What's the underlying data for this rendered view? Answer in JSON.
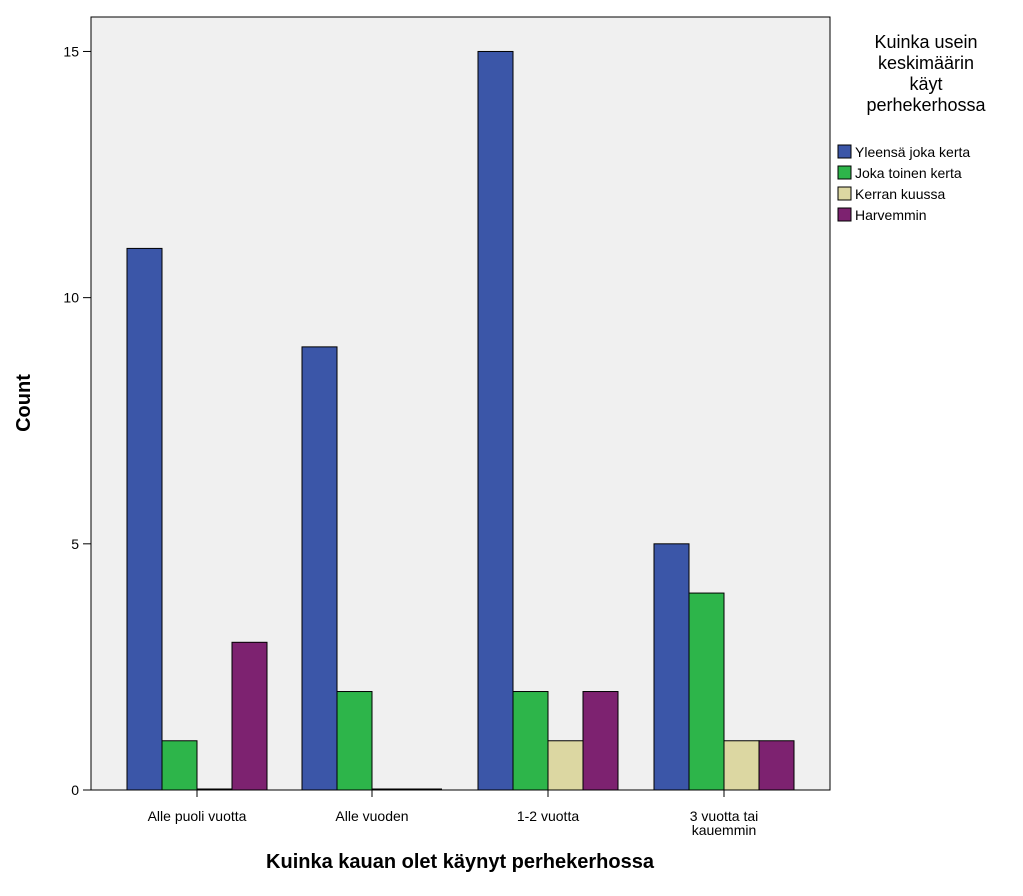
{
  "chart_data": {
    "type": "bar",
    "title": "",
    "xlabel": "Kuinka kauan olet käynyt perhekerhossa",
    "ylabel": "Count",
    "categories": [
      "Alle puoli vuotta",
      "Alle vuoden",
      "1-2 vuotta",
      "3 vuotta tai kauemmin"
    ],
    "category_lines": [
      [
        "Alle puoli vuotta"
      ],
      [
        "Alle vuoden"
      ],
      [
        "1-2 vuotta"
      ],
      [
        "3 vuotta tai",
        "kauemmin"
      ]
    ],
    "yticks": [
      0,
      5,
      10,
      15
    ],
    "ylim": [
      0,
      15.7
    ],
    "grid": false,
    "legend": {
      "title": "Kuinka usein keskimäärin käyt perhekerhossa",
      "title_lines": [
        "Kuinka usein",
        "keskimäärin",
        "käyt",
        "perhekerhossa"
      ],
      "placement": "right"
    },
    "series": [
      {
        "name": "Yleensä joka kerta",
        "color": "#3b56a8",
        "values": [
          11,
          9,
          15,
          5
        ]
      },
      {
        "name": "Joka toinen kerta",
        "color": "#2db54a",
        "values": [
          1,
          2,
          2,
          4
        ]
      },
      {
        "name": "Kerran kuussa",
        "color": "#dcd7a2",
        "values": [
          0,
          0,
          1,
          1
        ]
      },
      {
        "name": "Harvemmin",
        "color": "#7d2270",
        "values": [
          3,
          0,
          2,
          1
        ]
      }
    ],
    "plot_background": "#f0f0f0"
  }
}
